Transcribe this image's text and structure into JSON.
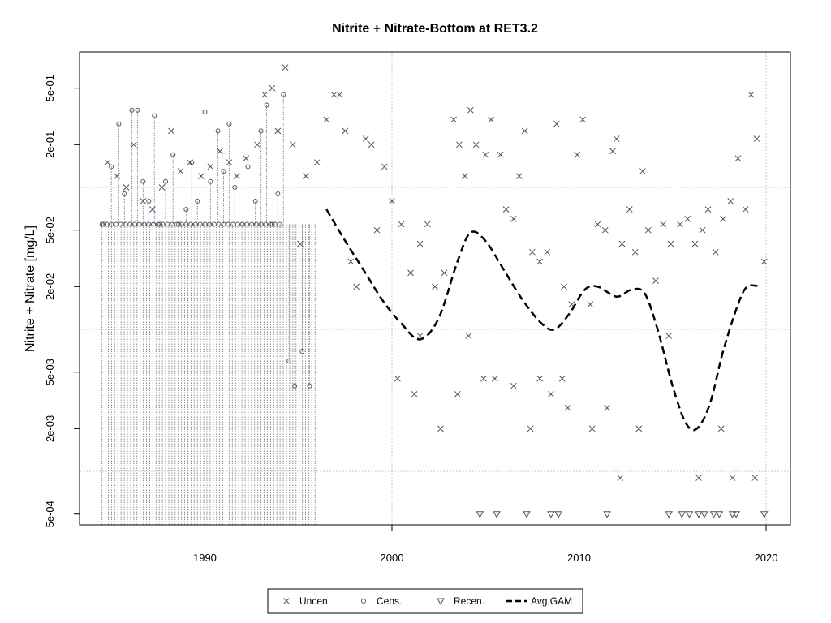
{
  "chart_data": {
    "type": "scatter",
    "title": "Nitrite + Nitrate-Bottom at RET3.2",
    "xlabel": "",
    "ylabel": "Nitrite + Nitrate [mg/L]",
    "log_y": true,
    "xlim": [
      1983.3,
      2021.3
    ],
    "ylim": [
      0.00042,
      0.9
    ],
    "grid": true,
    "legend_position": "bottom",
    "x_ticks": [
      1990,
      2000,
      2010,
      2020
    ],
    "x_tick_labels": [
      "1990",
      "2000",
      "2010",
      "2020"
    ],
    "y_ticks": [
      0.0005,
      0.002,
      0.005,
      0.02,
      0.05,
      0.2,
      0.5
    ],
    "y_tick_labels": [
      "5e-04",
      "2e-03",
      "5e-03",
      "2e-02",
      "5e-02",
      "2e-01",
      "5e-01"
    ],
    "y_grid": [
      0.001,
      0.01,
      0.1
    ],
    "colors": {
      "points": "#4a5568",
      "gam": "#000000",
      "grid": "#c8c8c8",
      "censored_line": "#8a8a8a"
    },
    "legend": [
      {
        "label": "Uncen.",
        "marker": "x"
      },
      {
        "label": "Cens.",
        "marker": "circle"
      },
      {
        "label": "Recen.",
        "marker": "triangle-down"
      },
      {
        "label": "Avg.GAM",
        "marker": "dashed-line"
      }
    ],
    "series": [
      {
        "name": "Uncen.",
        "marker": "x",
        "points": [
          [
            1984.8,
            0.15
          ],
          [
            1985.3,
            0.12
          ],
          [
            1985.8,
            0.1
          ],
          [
            1986.2,
            0.2
          ],
          [
            1986.7,
            0.08
          ],
          [
            1987.2,
            0.07
          ],
          [
            1987.7,
            0.1
          ],
          [
            1988.2,
            0.25
          ],
          [
            1988.7,
            0.13
          ],
          [
            1989.2,
            0.15
          ],
          [
            1989.8,
            0.12
          ],
          [
            1990.3,
            0.14
          ],
          [
            1990.8,
            0.18
          ],
          [
            1991.3,
            0.15
          ],
          [
            1991.7,
            0.12
          ],
          [
            1992.2,
            0.16
          ],
          [
            1992.8,
            0.2
          ],
          [
            1993.2,
            0.45
          ],
          [
            1993.6,
            0.5
          ],
          [
            1993.9,
            0.25
          ],
          [
            1994.3,
            0.7
          ],
          [
            1994.7,
            0.2
          ],
          [
            1995.1,
            0.04
          ],
          [
            1995.4,
            0.12
          ],
          [
            1996.0,
            0.15
          ],
          [
            1996.5,
            0.3
          ],
          [
            1996.9,
            0.45
          ],
          [
            1997.2,
            0.45
          ],
          [
            1997.5,
            0.25
          ],
          [
            1997.8,
            0.03
          ],
          [
            1998.1,
            0.02
          ],
          [
            1998.6,
            0.22
          ],
          [
            1998.9,
            0.2
          ],
          [
            1999.2,
            0.05
          ],
          [
            1999.6,
            0.14
          ],
          [
            2000.0,
            0.08
          ],
          [
            2000.5,
            0.055
          ],
          [
            2001.0,
            0.025
          ],
          [
            2001.5,
            0.04
          ],
          [
            2001.9,
            0.055
          ],
          [
            2002.3,
            0.02
          ],
          [
            2002.8,
            0.025
          ],
          [
            2003.3,
            0.3
          ],
          [
            2003.6,
            0.2
          ],
          [
            2003.9,
            0.12
          ],
          [
            2004.2,
            0.35
          ],
          [
            2004.5,
            0.2
          ],
          [
            2005.0,
            0.17
          ],
          [
            2005.3,
            0.3
          ],
          [
            2005.8,
            0.17
          ],
          [
            2006.1,
            0.07
          ],
          [
            2006.5,
            0.06
          ],
          [
            2006.8,
            0.12
          ],
          [
            2007.1,
            0.25
          ],
          [
            2007.5,
            0.035
          ],
          [
            2007.9,
            0.03
          ],
          [
            2008.3,
            0.035
          ],
          [
            2008.8,
            0.28
          ],
          [
            2009.2,
            0.02
          ],
          [
            2009.6,
            0.015
          ],
          [
            2009.9,
            0.17
          ],
          [
            2010.2,
            0.3
          ],
          [
            2010.6,
            0.015
          ],
          [
            2011.0,
            0.055
          ],
          [
            2011.4,
            0.05
          ],
          [
            2011.8,
            0.18
          ],
          [
            2012.0,
            0.22
          ],
          [
            2012.3,
            0.04
          ],
          [
            2012.7,
            0.07
          ],
          [
            2013.0,
            0.035
          ],
          [
            2013.4,
            0.13
          ],
          [
            2013.7,
            0.05
          ],
          [
            2014.1,
            0.022
          ],
          [
            2014.5,
            0.055
          ],
          [
            2014.9,
            0.04
          ],
          [
            2015.4,
            0.055
          ],
          [
            2015.8,
            0.06
          ],
          [
            2016.2,
            0.04
          ],
          [
            2016.6,
            0.05
          ],
          [
            2016.9,
            0.07
          ],
          [
            2017.3,
            0.035
          ],
          [
            2017.7,
            0.06
          ],
          [
            2018.1,
            0.08
          ],
          [
            2018.5,
            0.16
          ],
          [
            2018.9,
            0.07
          ],
          [
            2019.2,
            0.45
          ],
          [
            2019.5,
            0.22
          ],
          [
            2019.9,
            0.03
          ],
          [
            2000.3,
            0.0045
          ],
          [
            2001.2,
            0.0035
          ],
          [
            2002.6,
            0.002
          ],
          [
            2003.5,
            0.0035
          ],
          [
            2004.9,
            0.0045
          ],
          [
            2006.5,
            0.004
          ],
          [
            2007.4,
            0.002
          ],
          [
            2008.5,
            0.0035
          ],
          [
            2009.4,
            0.0028
          ],
          [
            2010.7,
            0.002
          ],
          [
            2011.5,
            0.0028
          ],
          [
            2012.2,
            0.0009
          ],
          [
            2013.2,
            0.002
          ],
          [
            2014.8,
            0.009
          ],
          [
            2016.4,
            0.0009
          ],
          [
            2017.6,
            0.002
          ],
          [
            2018.2,
            0.0009
          ],
          [
            2019.4,
            0.0009
          ],
          [
            2001.5,
            0.009
          ],
          [
            2004.1,
            0.009
          ],
          [
            2005.5,
            0.0045
          ],
          [
            2007.9,
            0.0045
          ],
          [
            2009.1,
            0.0045
          ]
        ]
      },
      {
        "name": "Cens.",
        "marker": "circle",
        "points": [
          [
            1984.6,
            0.055
          ],
          [
            1985.0,
            0.14
          ],
          [
            1985.4,
            0.28
          ],
          [
            1985.7,
            0.09
          ],
          [
            1986.1,
            0.35
          ],
          [
            1986.4,
            0.35
          ],
          [
            1986.7,
            0.11
          ],
          [
            1987.0,
            0.08
          ],
          [
            1987.3,
            0.32
          ],
          [
            1987.6,
            0.055
          ],
          [
            1987.9,
            0.11
          ],
          [
            1988.3,
            0.17
          ],
          [
            1988.6,
            0.055
          ],
          [
            1989.0,
            0.07
          ],
          [
            1989.3,
            0.15
          ],
          [
            1989.6,
            0.08
          ],
          [
            1990.0,
            0.34
          ],
          [
            1990.3,
            0.11
          ],
          [
            1990.7,
            0.25
          ],
          [
            1991.0,
            0.13
          ],
          [
            1991.3,
            0.28
          ],
          [
            1991.6,
            0.1
          ],
          [
            1992.0,
            0.055
          ],
          [
            1992.3,
            0.14
          ],
          [
            1992.7,
            0.08
          ],
          [
            1993.0,
            0.25
          ],
          [
            1993.3,
            0.38
          ],
          [
            1993.6,
            0.055
          ],
          [
            1993.9,
            0.09
          ],
          [
            1994.2,
            0.45
          ],
          [
            1994.5,
            0.006
          ],
          [
            1994.8,
            0.004
          ],
          [
            1995.2,
            0.007
          ],
          [
            1995.6,
            0.004
          ]
        ]
      },
      {
        "name": "Recen.",
        "marker": "triangle-down",
        "points": [
          [
            2004.7,
            0.0005
          ],
          [
            2005.6,
            0.0005
          ],
          [
            2007.2,
            0.0005
          ],
          [
            2008.5,
            0.0005
          ],
          [
            2008.9,
            0.0005
          ],
          [
            2011.5,
            0.0005
          ],
          [
            2014.8,
            0.0005
          ],
          [
            2015.5,
            0.0005
          ],
          [
            2015.9,
            0.0005
          ],
          [
            2016.4,
            0.0005
          ],
          [
            2016.7,
            0.0005
          ],
          [
            2017.2,
            0.0005
          ],
          [
            2017.5,
            0.0005
          ],
          [
            2018.2,
            0.0005
          ],
          [
            2018.4,
            0.0005
          ],
          [
            2019.9,
            0.0005
          ]
        ]
      },
      {
        "name": "Avg.GAM",
        "marker": "dashed-line",
        "points": [
          [
            1996.5,
            0.07
          ],
          [
            1997.5,
            0.042
          ],
          [
            1998.5,
            0.026
          ],
          [
            1999.5,
            0.016
          ],
          [
            2000.5,
            0.011
          ],
          [
            2001.5,
            0.0085
          ],
          [
            2002.5,
            0.012
          ],
          [
            2003.5,
            0.03
          ],
          [
            2004.2,
            0.048
          ],
          [
            2005.0,
            0.042
          ],
          [
            2006.0,
            0.026
          ],
          [
            2007.0,
            0.016
          ],
          [
            2008.0,
            0.011
          ],
          [
            2008.7,
            0.01
          ],
          [
            2009.5,
            0.013
          ],
          [
            2010.3,
            0.019
          ],
          [
            2011.0,
            0.02
          ],
          [
            2012.0,
            0.017
          ],
          [
            2012.8,
            0.019
          ],
          [
            2013.5,
            0.018
          ],
          [
            2014.2,
            0.01
          ],
          [
            2015.0,
            0.004
          ],
          [
            2015.7,
            0.0022
          ],
          [
            2016.3,
            0.002
          ],
          [
            2017.0,
            0.003
          ],
          [
            2017.7,
            0.007
          ],
          [
            2018.5,
            0.015
          ],
          [
            2019.0,
            0.02
          ],
          [
            2019.7,
            0.02
          ]
        ]
      }
    ]
  }
}
